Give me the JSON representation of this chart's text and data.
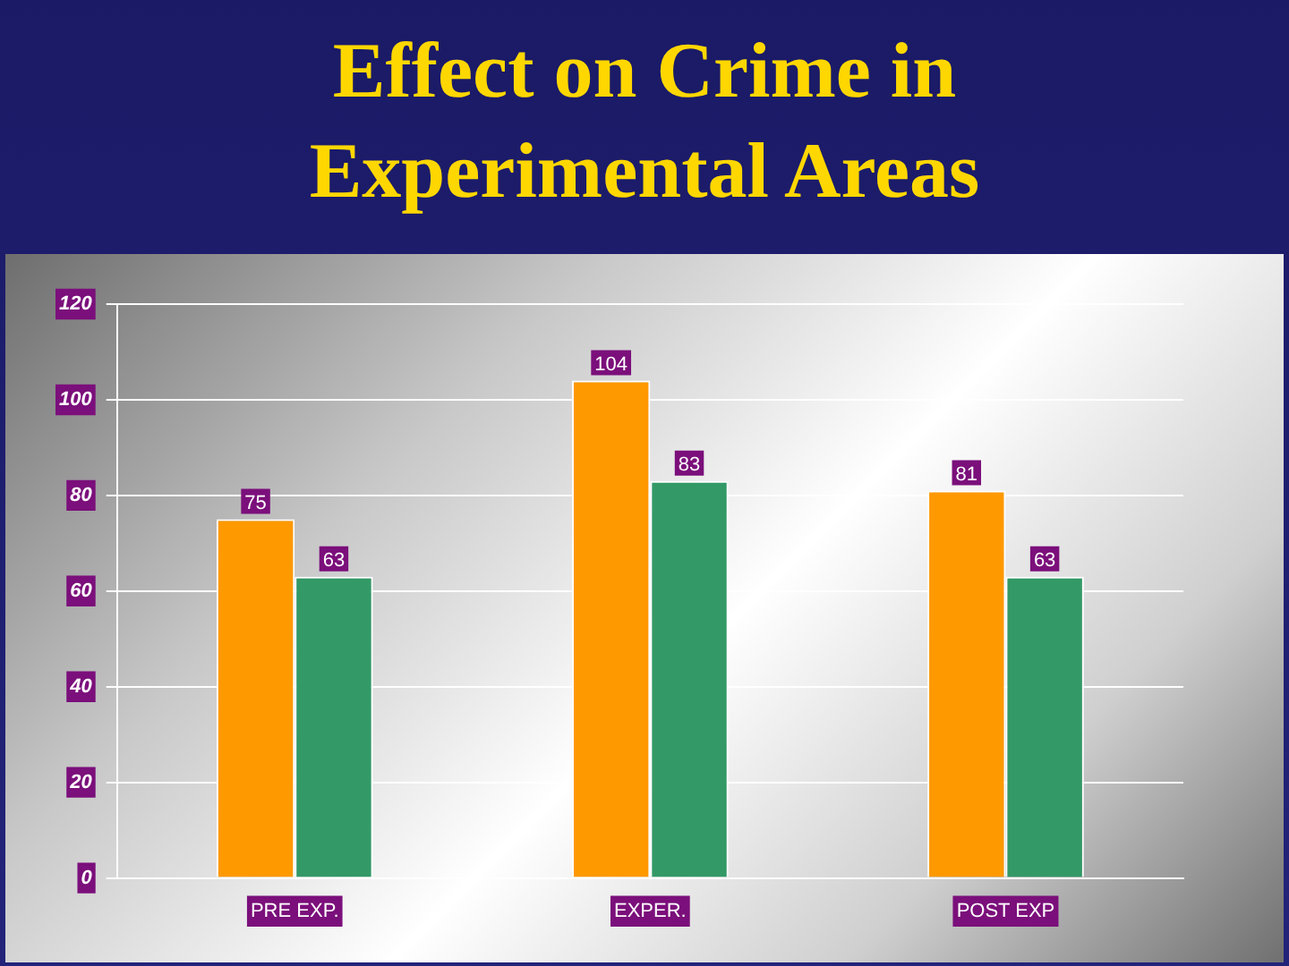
{
  "chart_data": {
    "type": "bar",
    "title": "Effect on Crime in Experimental Areas",
    "categories": [
      "PRE EXP.",
      "EXPER.",
      "POST EXP"
    ],
    "series": [
      {
        "color": "#ff9900",
        "values": [
          75,
          104,
          81
        ]
      },
      {
        "color": "#339966",
        "values": [
          63,
          83,
          63
        ]
      }
    ],
    "ylim": [
      0,
      120
    ],
    "yticks": [
      0,
      20,
      40,
      60,
      80,
      100,
      120
    ],
    "grid": "y",
    "legend": false,
    "data_labels": true
  }
}
